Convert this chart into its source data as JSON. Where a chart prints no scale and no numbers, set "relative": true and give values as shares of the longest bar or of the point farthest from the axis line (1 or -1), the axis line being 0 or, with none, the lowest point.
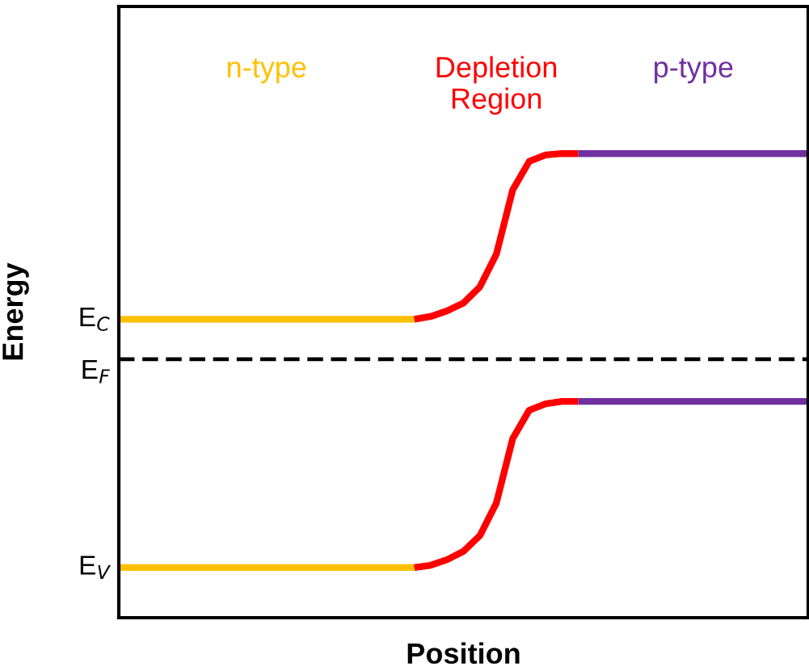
{
  "chart_data": {
    "type": "line",
    "relative": true,
    "xlabel": "Position",
    "ylabel": "Energy",
    "categories": [
      null,
      null,
      null,
      null,
      null,
      null,
      null,
      null,
      null,
      null,
      null,
      null,
      null,
      null,
      null,
      null,
      null,
      null,
      null,
      null,
      null,
      null,
      null,
      null,
      null,
      null,
      null,
      null,
      null,
      null,
      null,
      null,
      null,
      null,
      null,
      null,
      null,
      null,
      null,
      null,
      null,
      null,
      null
    ],
    "series": [
      {
        "name": "n-type",
        "color": "#ffc000",
        "values": [
          0.643,
          0.643,
          0.643,
          0.643,
          0.643,
          0.643,
          0.643,
          0.643,
          0.643,
          0.643,
          0.643,
          0.643,
          0.643,
          0.643,
          0.643,
          0.643,
          0.643,
          0.643,
          0.643,
          null,
          null,
          null,
          null,
          null,
          null,
          null,
          null,
          null,
          null,
          null,
          null,
          null,
          null,
          null,
          null,
          null,
          null,
          null,
          null,
          null,
          null,
          null,
          null
        ]
      },
      {
        "name": "Depletion\nRegion",
        "color": "#ff0000",
        "values": [
          null,
          null,
          null,
          null,
          null,
          null,
          null,
          null,
          null,
          null,
          null,
          null,
          null,
          null,
          null,
          null,
          null,
          null,
          0.643,
          0.649,
          0.661,
          0.678,
          0.713,
          0.783,
          0.922,
          0.983,
          0.997,
          1,
          1,
          null,
          null,
          null,
          null,
          null,
          null,
          null,
          null,
          null,
          null,
          null,
          null,
          null,
          null
        ]
      },
      {
        "name": "p-type",
        "color": "#7030a0",
        "values": [
          null,
          null,
          null,
          null,
          null,
          null,
          null,
          null,
          null,
          null,
          null,
          null,
          null,
          null,
          null,
          null,
          null,
          null,
          null,
          null,
          null,
          null,
          null,
          null,
          null,
          null,
          null,
          null,
          1,
          1,
          1,
          1,
          1,
          1,
          1,
          1,
          1,
          1,
          1,
          1,
          1,
          1,
          1
        ]
      },
      {
        "color": "#ffc000",
        "values": [
          0.108,
          0.108,
          0.108,
          0.108,
          0.108,
          0.108,
          0.108,
          0.108,
          0.108,
          0.108,
          0.108,
          0.108,
          0.108,
          0.108,
          0.108,
          0.108,
          0.108,
          0.108,
          0.108,
          null,
          null,
          null,
          null,
          null,
          null,
          null,
          null,
          null,
          null,
          null,
          null,
          null,
          null,
          null,
          null,
          null,
          null,
          null,
          null,
          null,
          null,
          null,
          null
        ]
      },
      {
        "color": "#ff0000",
        "values": [
          null,
          null,
          null,
          null,
          null,
          null,
          null,
          null,
          null,
          null,
          null,
          null,
          null,
          null,
          null,
          null,
          null,
          null,
          0.108,
          0.113,
          0.125,
          0.143,
          0.177,
          0.247,
          0.386,
          0.447,
          0.461,
          0.466,
          0.466,
          null,
          null,
          null,
          null,
          null,
          null,
          null,
          null,
          null,
          null,
          null,
          null,
          null,
          null
        ]
      },
      {
        "color": "#7030a0",
        "values": [
          null,
          null,
          null,
          null,
          null,
          null,
          null,
          null,
          null,
          null,
          null,
          null,
          null,
          null,
          null,
          null,
          null,
          null,
          null,
          null,
          null,
          null,
          null,
          null,
          null,
          null,
          null,
          null,
          0.466,
          0.466,
          0.466,
          0.466,
          0.466,
          0.466,
          0.466,
          0.466,
          0.466,
          0.466,
          0.466,
          0.466,
          0.466,
          0.466,
          0.466
        ]
      }
    ],
    "ref_lines": [
      {
        "axis": "y",
        "value": 0.557,
        "label": "E$_{F}$",
        "color": "#000000",
        "line_style": "dashed"
      }
    ],
    "annotations": [
      "E$_{C}$",
      "E$_{V}$"
    ],
    "marker": "none",
    "line_style": "solid"
  }
}
